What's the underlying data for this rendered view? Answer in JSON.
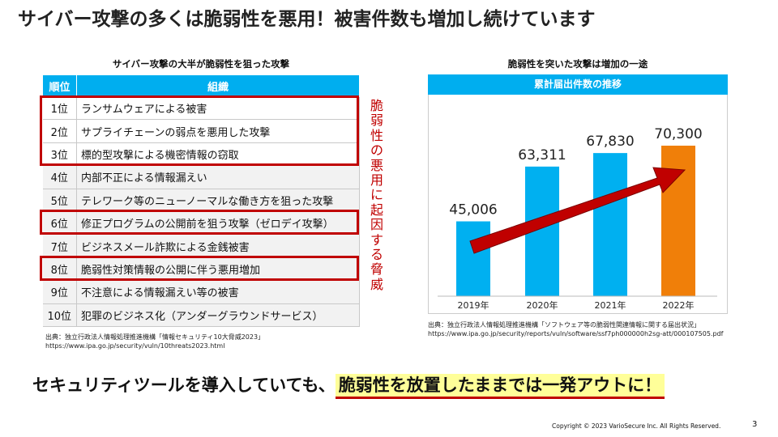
{
  "title": "サイバー攻撃の多くは脆弱性を悪用！被害件数も増加し続けています",
  "left": {
    "subtitle": "サイバー攻撃の大半が脆弱性を狙った攻撃",
    "headers": [
      "順位",
      "組織"
    ],
    "rows": [
      {
        "rank": "1位",
        "text": "ランサムウェアによる被害"
      },
      {
        "rank": "2位",
        "text": "サプライチェーンの弱点を悪用した攻撃"
      },
      {
        "rank": "3位",
        "text": "標的型攻撃による機密情報の窃取"
      },
      {
        "rank": "4位",
        "text": "内部不正による情報漏えい"
      },
      {
        "rank": "5位",
        "text": "テレワーク等のニューノーマルな働き方を狙った攻撃"
      },
      {
        "rank": "6位",
        "text": "修正プログラムの公開前を狙う攻撃（ゼロデイ攻撃）"
      },
      {
        "rank": "7位",
        "text": "ビジネスメール詐欺による金銭被害"
      },
      {
        "rank": "8位",
        "text": "脆弱性対策情報の公開に伴う悪用増加"
      },
      {
        "rank": "9位",
        "text": "不注意による情報漏えい等の被害"
      },
      {
        "rank": "10位",
        "text": "犯罪のビジネス化（アンダーグラウンドサービス）"
      }
    ],
    "side_note": "脆弱性の悪用に起因する脅威",
    "source1": "出典：独立行政法人情報処理推進機構「情報セキュリティ10大脅威2023」",
    "source2": "https://www.ipa.go.jp/security/vuln/10threats2023.html"
  },
  "chart_data": {
    "type": "bar",
    "title": "脆弱性を突いた攻撃は増加の一途",
    "panel_title": "累計届出件数の推移",
    "categories": [
      "2019年",
      "2020年",
      "2021年",
      "2022年"
    ],
    "values": [
      45006,
      63311,
      67830,
      70300
    ],
    "labels": [
      "45,006",
      "63,311",
      "67,830",
      "70,300"
    ],
    "colors": [
      "#00b0f0",
      "#00b0f0",
      "#00b0f0",
      "#f07f09"
    ],
    "trend_arrow": "increasing"
  },
  "right": {
    "source1": "出典：独立行政法人情報処理推進機構「ソフトウェア等の脆弱性関連情報に関する届出状況」",
    "source2": "https://www.ipa.go.jp/security/reports/vuln/software/ssf7ph000000h2sg-att/000107505.pdf"
  },
  "bottom": {
    "prefix": "セキュリティツールを導入していても、",
    "highlight": "脆弱性を放置したままでは一発アウトに！"
  },
  "footer": {
    "copyright": "Copyright © 2023 VarioSecure Inc. All Rights Reserved.",
    "page": "3"
  }
}
